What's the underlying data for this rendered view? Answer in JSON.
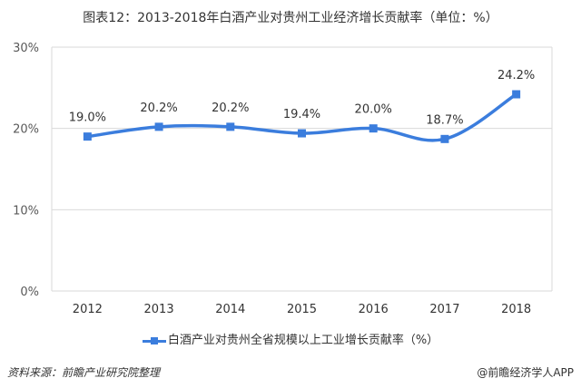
{
  "title": "图表12：2013-2018年白酒产业对贵州工业经济增长贡献率（单位：%）",
  "legend": {
    "label": "白酒产业对贵州全省规模以上工业增长贡献率（%）"
  },
  "footer": {
    "source": "资料来源：前瞻产业研究院整理",
    "credit": "@前瞻经济学人APP"
  },
  "colors": {
    "series": "#3b7ddd",
    "grid": "#d9d9d9",
    "text": "#595959"
  },
  "chart_data": {
    "type": "line",
    "title": "图表12：2013-2018年白酒产业对贵州工业经济增长贡献率（单位：%）",
    "xlabel": "",
    "ylabel": "",
    "categories": [
      "2012",
      "2013",
      "2014",
      "2015",
      "2016",
      "2017",
      "2018"
    ],
    "series": [
      {
        "name": "白酒产业对贵州全省规模以上工业增长贡献率（%）",
        "values": [
          19.0,
          20.2,
          20.2,
          19.4,
          20.0,
          18.7,
          24.2
        ]
      }
    ],
    "data_labels": [
      "19.0%",
      "20.2%",
      "20.2%",
      "19.4%",
      "20.0%",
      "18.7%",
      "24.2%"
    ],
    "yticks": [
      "0%",
      "10%",
      "20%",
      "30%"
    ],
    "ylim": [
      0,
      30
    ],
    "grid": true,
    "smooth": true,
    "legend_position": "bottom"
  }
}
